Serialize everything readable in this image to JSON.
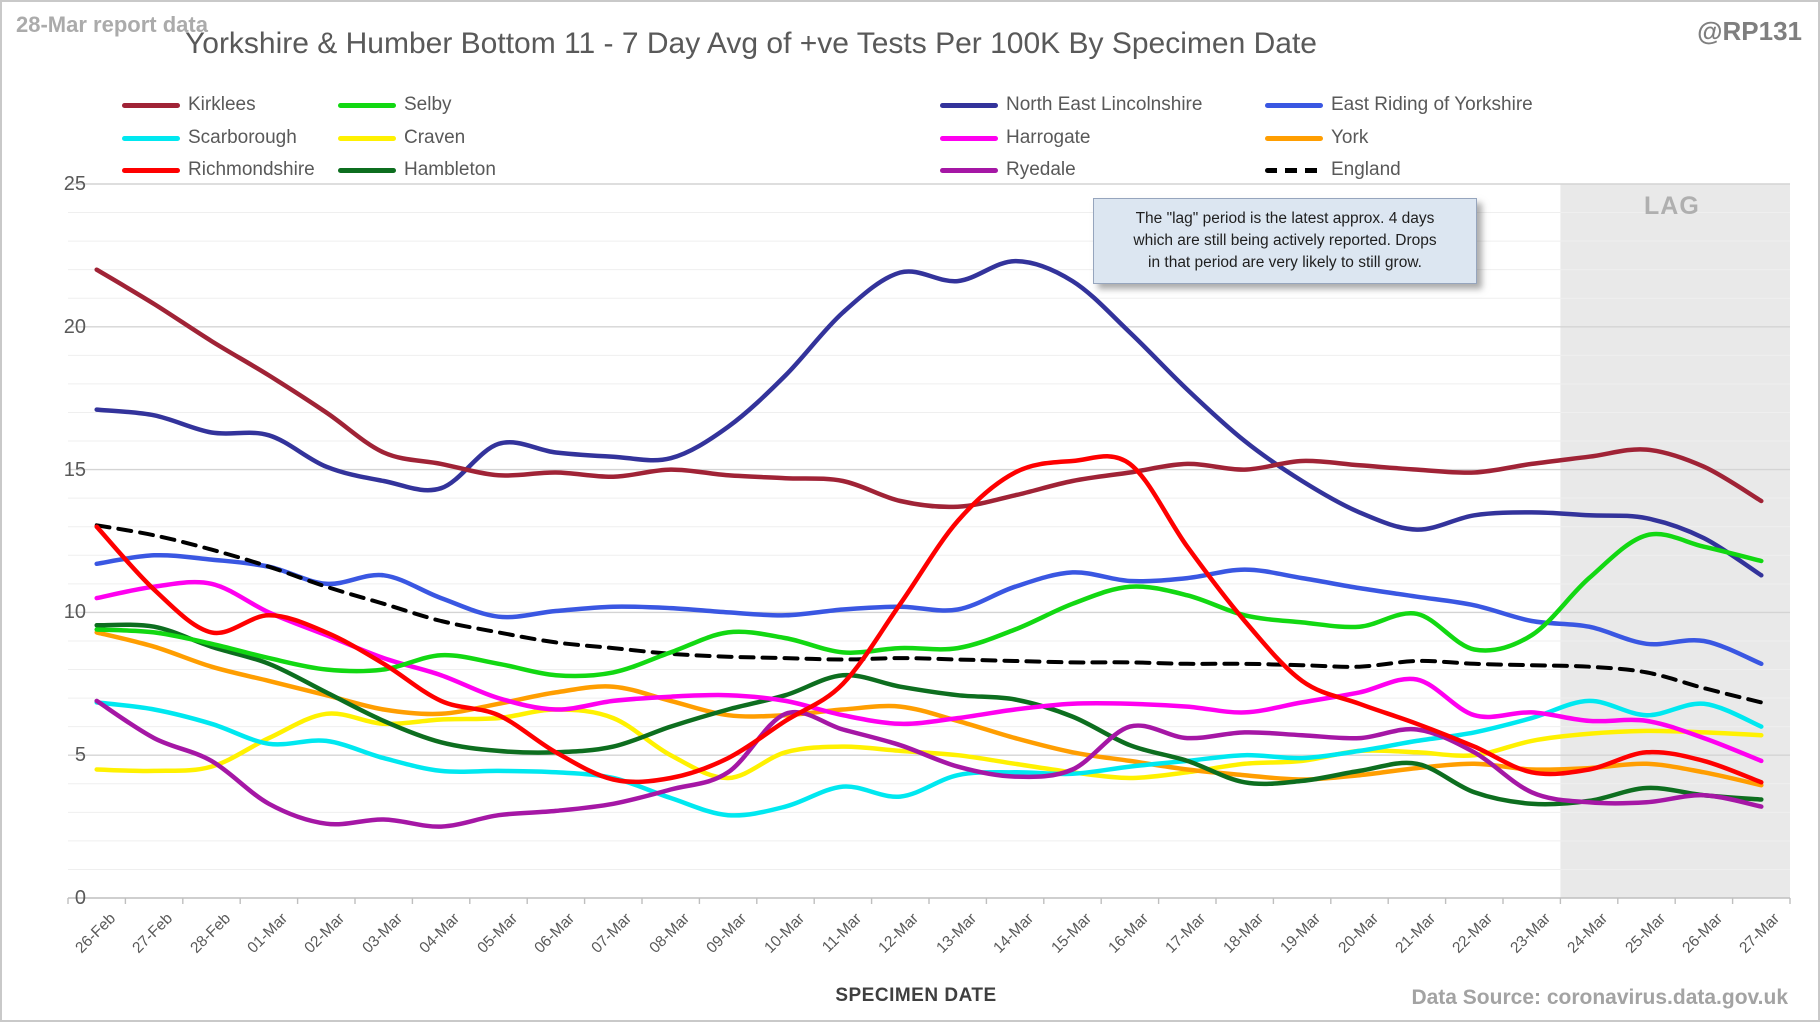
{
  "header": {
    "report_note": "28-Mar report data",
    "title": "Yorkshire & Humber Bottom 11 - 7 Day Avg of +ve Tests Per 100K By Specimen Date",
    "watermark": "@RP131"
  },
  "annotation": {
    "line1": "The \"lag\" period is the latest approx. 4 days",
    "line2": "which are still being actively reported. Drops",
    "line3": "in that period are very likely to still grow.",
    "lag_label": "LAG"
  },
  "axes": {
    "x_title": "SPECIMEN DATE",
    "y_ticks": [
      0,
      5,
      10,
      15,
      20,
      25
    ]
  },
  "footer": {
    "data_source": "Data Source: coronavirus.data.gov.uk"
  },
  "chart_data": {
    "type": "line",
    "title": "Yorkshire & Humber Bottom 11 - 7 Day Avg of +ve Tests Per 100K By Specimen Date",
    "xlabel": "SPECIMEN DATE",
    "ylabel": "",
    "ylim": [
      0,
      25
    ],
    "grid": "horizontal minor every 1, major every 5",
    "legend_position": "top",
    "lag_region": {
      "label": "LAG",
      "covers_dates": [
        "24-Mar",
        "25-Mar",
        "26-Mar",
        "27-Mar"
      ]
    },
    "x": [
      "26-Feb",
      "27-Feb",
      "28-Feb",
      "01-Mar",
      "02-Mar",
      "03-Mar",
      "04-Mar",
      "05-Mar",
      "06-Mar",
      "07-Mar",
      "08-Mar",
      "09-Mar",
      "10-Mar",
      "11-Mar",
      "12-Mar",
      "13-Mar",
      "14-Mar",
      "15-Mar",
      "16-Mar",
      "17-Mar",
      "18-Mar",
      "19-Mar",
      "20-Mar",
      "21-Mar",
      "22-Mar",
      "23-Mar",
      "24-Mar",
      "25-Mar",
      "26-Mar",
      "27-Mar"
    ],
    "series": [
      {
        "name": "Kirklees",
        "color": "#A02336",
        "dashed": false,
        "values": [
          22.0,
          20.8,
          19.5,
          18.3,
          17.0,
          15.6,
          15.2,
          14.8,
          14.9,
          14.75,
          15.0,
          14.8,
          14.7,
          14.6,
          13.9,
          13.7,
          14.1,
          14.6,
          14.9,
          15.2,
          15.0,
          15.3,
          15.15,
          15.0,
          14.9,
          15.2,
          15.45,
          15.7,
          15.1,
          13.9
        ]
      },
      {
        "name": "Scarborough",
        "color": "#00E8F0",
        "dashed": false,
        "values": [
          6.85,
          6.6,
          6.1,
          5.4,
          5.5,
          4.9,
          4.45,
          4.45,
          4.4,
          4.2,
          3.5,
          2.9,
          3.2,
          3.9,
          3.55,
          4.3,
          4.4,
          4.35,
          4.6,
          4.8,
          5.0,
          4.9,
          5.15,
          5.5,
          5.8,
          6.3,
          6.9,
          6.4,
          6.8,
          6.0
        ]
      },
      {
        "name": "Richmondshire",
        "color": "#FE0000",
        "dashed": false,
        "values": [
          13.0,
          10.8,
          9.3,
          9.9,
          9.3,
          8.2,
          6.9,
          6.4,
          5.1,
          4.15,
          4.2,
          4.9,
          6.2,
          7.5,
          10.3,
          13.2,
          14.9,
          15.3,
          15.2,
          12.3,
          9.7,
          7.6,
          6.8,
          6.1,
          5.3,
          4.4,
          4.5,
          5.1,
          4.8,
          4.05
        ]
      },
      {
        "name": "Selby",
        "color": "#12D812",
        "dashed": false,
        "values": [
          9.4,
          9.3,
          8.9,
          8.4,
          8.0,
          8.0,
          8.5,
          8.2,
          7.8,
          7.9,
          8.6,
          9.3,
          9.1,
          8.6,
          8.75,
          8.75,
          9.4,
          10.3,
          10.9,
          10.6,
          9.9,
          9.65,
          9.5,
          9.95,
          8.7,
          9.2,
          11.2,
          12.7,
          12.3,
          11.8
        ]
      },
      {
        "name": "Craven",
        "color": "#FFF101",
        "dashed": false,
        "values": [
          4.5,
          4.45,
          4.6,
          5.6,
          6.45,
          6.1,
          6.25,
          6.3,
          6.6,
          6.3,
          5.0,
          4.2,
          5.1,
          5.3,
          5.15,
          5.0,
          4.7,
          4.4,
          4.2,
          4.4,
          4.7,
          4.8,
          5.15,
          5.1,
          5.0,
          5.5,
          5.75,
          5.85,
          5.8,
          5.7
        ]
      },
      {
        "name": "Hambleton",
        "color": "#0D6E1F",
        "dashed": false,
        "values": [
          9.55,
          9.5,
          8.8,
          8.2,
          7.2,
          6.2,
          5.45,
          5.15,
          5.1,
          5.3,
          6.0,
          6.6,
          7.1,
          7.8,
          7.4,
          7.1,
          6.95,
          6.35,
          5.35,
          4.8,
          4.05,
          4.1,
          4.45,
          4.7,
          3.7,
          3.3,
          3.4,
          3.85,
          3.6,
          3.45
        ]
      },
      {
        "name": "North East Lincolnshire",
        "color": "#33339B",
        "dashed": false,
        "values": [
          17.1,
          16.9,
          16.3,
          16.2,
          15.1,
          14.6,
          14.35,
          15.9,
          15.6,
          15.45,
          15.4,
          16.5,
          18.3,
          20.5,
          21.9,
          21.6,
          22.3,
          21.6,
          19.8,
          17.8,
          16.0,
          14.6,
          13.5,
          12.9,
          13.4,
          13.5,
          13.4,
          13.3,
          12.6,
          11.3
        ]
      },
      {
        "name": "Harrogate",
        "color": "#FF00F0",
        "dashed": false,
        "values": [
          10.5,
          10.9,
          11.0,
          10.0,
          9.2,
          8.4,
          7.8,
          7.0,
          6.6,
          6.9,
          7.05,
          7.1,
          6.9,
          6.4,
          6.1,
          6.3,
          6.6,
          6.8,
          6.8,
          6.7,
          6.5,
          6.85,
          7.2,
          7.65,
          6.4,
          6.5,
          6.2,
          6.2,
          5.6,
          4.8
        ]
      },
      {
        "name": "Ryedale",
        "color": "#A517A5",
        "dashed": false,
        "values": [
          6.9,
          5.6,
          4.8,
          3.3,
          2.6,
          2.75,
          2.5,
          2.9,
          3.05,
          3.3,
          3.8,
          4.4,
          6.45,
          5.9,
          5.35,
          4.6,
          4.25,
          4.5,
          6.0,
          5.6,
          5.8,
          5.7,
          5.6,
          5.9,
          5.1,
          3.7,
          3.35,
          3.35,
          3.6,
          3.2
        ]
      },
      {
        "name": "East Riding of Yorkshire",
        "color": "#3A57E2",
        "dashed": false,
        "values": [
          11.7,
          12.0,
          11.85,
          11.6,
          11.0,
          11.3,
          10.5,
          9.85,
          10.05,
          10.2,
          10.15,
          10.0,
          9.9,
          10.1,
          10.2,
          10.1,
          10.9,
          11.4,
          11.1,
          11.2,
          11.5,
          11.2,
          10.85,
          10.55,
          10.25,
          9.7,
          9.5,
          8.9,
          9.0,
          8.2
        ]
      },
      {
        "name": "York",
        "color": "#FF9E01",
        "dashed": false,
        "values": [
          9.3,
          8.8,
          8.1,
          7.6,
          7.1,
          6.6,
          6.45,
          6.8,
          7.2,
          7.4,
          6.9,
          6.4,
          6.4,
          6.6,
          6.7,
          6.2,
          5.6,
          5.1,
          4.8,
          4.5,
          4.3,
          4.15,
          4.3,
          4.55,
          4.7,
          4.5,
          4.55,
          4.7,
          4.4,
          3.95
        ]
      },
      {
        "name": "England",
        "color": "#000000",
        "dashed": true,
        "values": [
          13.05,
          12.7,
          12.2,
          11.6,
          10.9,
          10.3,
          9.7,
          9.3,
          8.95,
          8.75,
          8.55,
          8.45,
          8.4,
          8.35,
          8.4,
          8.35,
          8.3,
          8.25,
          8.25,
          8.2,
          8.2,
          8.15,
          8.1,
          8.3,
          8.2,
          8.15,
          8.1,
          7.9,
          7.35,
          6.85
        ]
      }
    ]
  }
}
